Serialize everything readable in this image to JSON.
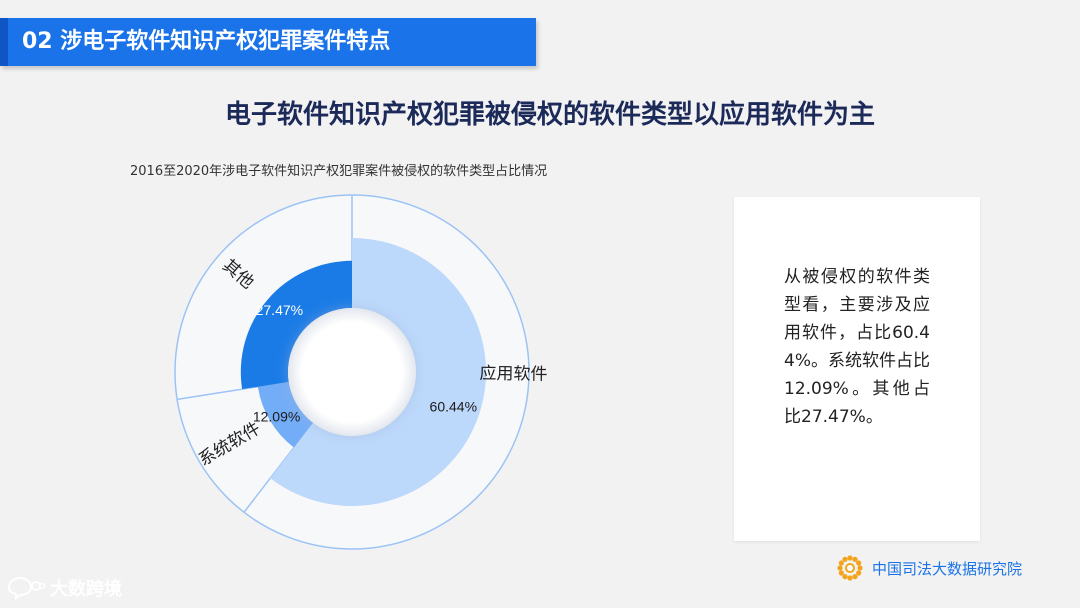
{
  "section": {
    "label": "02  涉电子软件知识产权犯罪案件特点"
  },
  "headline": "电子软件知识产权犯罪被侵权的软件类型以应用软件为主",
  "chart_data": {
    "type": "pie",
    "variant": "donut",
    "title": "2016至2020年涉电子软件知识产权犯罪案件被侵权的软件类型占比情况",
    "categories": [
      "应用软件",
      "系统软件",
      "其他"
    ],
    "values": [
      60.44,
      12.09,
      27.47
    ],
    "value_labels": [
      "60.44%",
      "12.09%",
      "27.47%"
    ],
    "unit": "%",
    "colors": [
      "#bcd8fb",
      "#74adf7",
      "#1a7be6"
    ],
    "legend": "none",
    "category_labels_position": "outer ring"
  },
  "note": {
    "text": "从被侵权的软件类型看，主要涉及应用软件，占比60.44%。系统软件占比12.09%。其他占比27.47%。"
  },
  "footer": {
    "org_name": "中国司法大数据研究院",
    "watermark": "大数跨境",
    "sun_icon": "sun-logo-icon",
    "watermark_icon": "chat-bubble-icon"
  },
  "colors": {
    "banner": "#1a73e8",
    "headline": "#1c2a5a",
    "ring_line": "#9cc3f5",
    "org_text": "#1a73e8"
  }
}
